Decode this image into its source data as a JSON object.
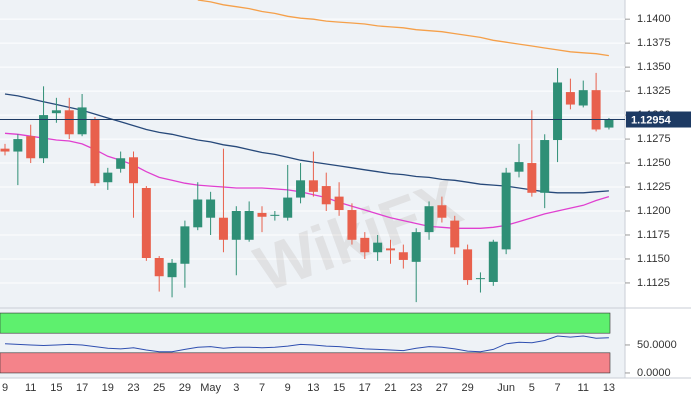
{
  "chart_data": [
    {
      "type": "candlestick",
      "categories": [
        "9",
        null,
        "11",
        null,
        "15",
        null,
        "17",
        null,
        "19",
        null,
        "23",
        null,
        "25",
        null,
        "29",
        null,
        "May",
        null,
        "3",
        null,
        "7",
        null,
        "9",
        null,
        "13",
        null,
        "15",
        null,
        "17",
        null,
        "21",
        null,
        "23",
        null,
        "27",
        null,
        "29",
        null,
        null,
        "Jun",
        null,
        "5",
        null,
        "7",
        null,
        "11",
        null,
        "13"
      ],
      "open": [
        1.1265,
        1.1262,
        1.1278,
        1.1255,
        1.1302,
        1.1305,
        1.128,
        1.1295,
        1.123,
        1.1244,
        1.1256,
        1.1224,
        1.1151,
        1.1131,
        1.1145,
        1.1183,
        1.1193,
        1.1193,
        1.117,
        1.117,
        1.1198,
        1.1195,
        1.1193,
        1.1214,
        1.1232,
        1.1226,
        1.1215,
        1.1201,
        1.1172,
        1.1157,
        1.1161,
        1.1157,
        1.1147,
        1.1178,
        1.1206,
        1.119,
        1.116,
        1.113,
        1.1126,
        1.116,
        1.1241,
        1.125,
        1.1219,
        1.1274,
        1.1324,
        1.131,
        1.1326,
        1.1287
      ],
      "high": [
        1.127,
        1.128,
        1.129,
        1.133,
        1.1318,
        1.1318,
        1.1322,
        1.1298,
        1.1245,
        1.1262,
        1.1262,
        1.1226,
        1.1153,
        1.115,
        1.119,
        1.123,
        1.122,
        1.1265,
        1.1205,
        1.121,
        1.1205,
        1.12,
        1.1248,
        1.125,
        1.1262,
        1.124,
        1.123,
        1.1208,
        1.1178,
        1.1175,
        1.117,
        1.1165,
        1.1182,
        1.121,
        1.1215,
        1.1195,
        1.1165,
        1.1136,
        1.117,
        1.1245,
        1.127,
        1.1305,
        1.128,
        1.1349,
        1.1338,
        1.1336,
        1.1344,
        1.1297
      ],
      "low": [
        1.1258,
        1.1227,
        1.125,
        1.125,
        1.1292,
        1.1275,
        1.1278,
        1.1226,
        1.1222,
        1.124,
        1.1193,
        1.1148,
        1.1116,
        1.111,
        1.112,
        1.118,
        1.1175,
        1.1157,
        1.1133,
        1.1168,
        1.1178,
        1.119,
        1.119,
        1.1208,
        1.1215,
        1.12,
        1.1195,
        1.1165,
        1.115,
        1.1148,
        1.1145,
        1.114,
        1.1105,
        1.117,
        1.1188,
        1.1155,
        1.1123,
        1.1115,
        1.1122,
        1.1155,
        1.1235,
        1.1215,
        1.1203,
        1.1251,
        1.1306,
        1.1308,
        1.1283,
        1.1285
      ],
      "close": [
        1.1262,
        1.1275,
        1.1255,
        1.13,
        1.1305,
        1.128,
        1.1308,
        1.1229,
        1.124,
        1.1255,
        1.1229,
        1.1151,
        1.1132,
        1.1146,
        1.1184,
        1.1212,
        1.1212,
        1.117,
        1.12,
        1.12,
        1.1194,
        1.1196,
        1.1214,
        1.1232,
        1.122,
        1.1207,
        1.1201,
        1.117,
        1.1157,
        1.1167,
        1.1159,
        1.1149,
        1.1178,
        1.1205,
        1.1193,
        1.1162,
        1.1128,
        1.113,
        1.1168,
        1.124,
        1.1251,
        1.1219,
        1.1274,
        1.1334,
        1.1311,
        1.1326,
        1.1285,
        1.1295
      ],
      "up_color": "#2f8f76",
      "down_color": "#e8604c",
      "series": [
        {
          "color": "#f5a04a",
          "values": [
            null,
            null,
            null,
            null,
            null,
            null,
            null,
            null,
            null,
            null,
            null,
            null,
            null,
            null,
            null,
            1.142,
            1.1418,
            1.1415,
            1.1413,
            1.1411,
            1.1408,
            1.1406,
            1.1403,
            1.1401,
            1.14,
            1.1398,
            1.1397,
            1.1396,
            1.1395,
            1.1393,
            1.1392,
            1.1391,
            1.1389,
            1.1388,
            1.1387,
            1.1385,
            1.1383,
            1.1381,
            1.1378,
            1.1376,
            1.1374,
            1.1372,
            1.137,
            1.1368,
            1.1366,
            1.1365,
            1.1364,
            1.1362
          ]
        },
        {
          "color": "#27497a",
          "values": [
            1.1322,
            1.132,
            1.1317,
            1.1314,
            1.1311,
            1.1308,
            1.1305,
            1.1301,
            1.1297,
            1.1293,
            1.1289,
            1.1285,
            1.1282,
            1.128,
            1.1277,
            1.1274,
            1.1272,
            1.1269,
            1.1267,
            1.1264,
            1.1261,
            1.1259,
            1.1256,
            1.1253,
            1.1251,
            1.1249,
            1.1247,
            1.1245,
            1.1243,
            1.1241,
            1.1239,
            1.1238,
            1.1236,
            1.1235,
            1.1233,
            1.1232,
            1.123,
            1.1228,
            1.1227,
            1.1226,
            1.1224,
            1.1222,
            1.122,
            1.1219,
            1.1219,
            1.1219,
            1.122,
            1.1221
          ]
        },
        {
          "color": "#e040d0",
          "values": [
            1.1281,
            1.128,
            1.1278,
            1.1276,
            1.1274,
            1.1273,
            1.127,
            1.1264,
            1.1257,
            1.1253,
            1.1248,
            1.1241,
            1.1235,
            1.1232,
            1.1229,
            1.1227,
            1.1226,
            1.1225,
            1.1224,
            1.1224,
            1.1224,
            1.1223,
            1.1222,
            1.122,
            1.1217,
            1.1214,
            1.1209,
            1.1205,
            1.1201,
            1.1197,
            1.1193,
            1.119,
            1.1187,
            1.1184,
            1.1183,
            1.1182,
            1.1182,
            1.1182,
            1.1183,
            1.1185,
            1.1189,
            1.1193,
            1.1197,
            1.12,
            1.1203,
            1.1206,
            1.1211,
            1.1215
          ]
        }
      ],
      "last_price": 1.12954,
      "last_price_color": "#1d3a63",
      "ylim": [
        1.1102,
        1.142
      ],
      "yticks": [
        {
          "value": 1.14,
          "label": "1.1400"
        },
        1.1375,
        {
          "value": 1.135,
          "label": "1.1350"
        },
        1.1325,
        {
          "value": 1.13,
          "label": "1.1300"
        },
        1.1275,
        {
          "value": 1.125,
          "label": "1.1250"
        },
        1.1225,
        {
          "value": 1.12,
          "label": "1.1200"
        },
        1.1175,
        {
          "value": 1.115,
          "label": "1.1150"
        },
        1.1125
      ],
      "grid": true,
      "watermark": "WikiFX"
    },
    {
      "type": "line",
      "color": "#2f4fb0",
      "values": [
        52,
        51,
        50,
        49,
        50,
        51,
        50,
        47,
        44,
        43,
        45,
        41,
        38,
        38,
        42,
        46,
        47,
        44,
        46,
        46,
        45,
        46,
        48,
        51,
        50,
        48,
        47,
        45,
        43,
        42,
        41,
        40,
        44,
        47,
        46,
        43,
        39,
        38,
        42,
        52,
        55,
        54,
        58,
        66,
        64,
        66,
        62,
        63
      ],
      "bands": [
        {
          "range": [
            71,
            107
          ],
          "color": "#5ef06e"
        },
        {
          "range": [
            0,
            36
          ],
          "color": "#f4838a"
        }
      ],
      "ylim": [
        -9,
        116
      ],
      "yticks": [
        {
          "value": 50,
          "label": "50.0000"
        },
        {
          "value": 0,
          "label": "0.0000"
        }
      ]
    }
  ]
}
